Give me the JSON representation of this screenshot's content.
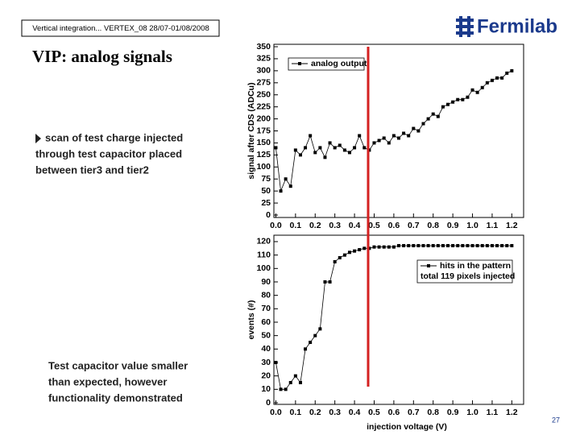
{
  "header": {
    "conference": "Vertical integration... VERTEX_08 28/07-01/08/2008",
    "logo": "Fermilab"
  },
  "slide": {
    "title": "VIP: analog signals",
    "bullet": [
      "scan of test charge injected",
      "through test capacitor placed",
      "between tier3 and tier2"
    ],
    "note": [
      "Test capacitor value smaller",
      "than expected, however",
      "functionality demonstrated"
    ],
    "page": "27"
  },
  "chart_data": [
    {
      "type": "line",
      "ylabel": "signal after CDS (ADCu)",
      "x": [
        0.0,
        0.025,
        0.05,
        0.075,
        0.1,
        0.125,
        0.15,
        0.175,
        0.2,
        0.225,
        0.25,
        0.275,
        0.3,
        0.325,
        0.35,
        0.375,
        0.4,
        0.425,
        0.45,
        0.475,
        0.5,
        0.525,
        0.55,
        0.575,
        0.6,
        0.625,
        0.65,
        0.675,
        0.7,
        0.725,
        0.75,
        0.775,
        0.8,
        0.825,
        0.85,
        0.875,
        0.9,
        0.925,
        0.95,
        0.975,
        1.0,
        1.025,
        1.05,
        1.075,
        1.1,
        1.125,
        1.15,
        1.175,
        1.2
      ],
      "series": [
        {
          "name": "analog output",
          "color": "#000000",
          "values": [
            140,
            50,
            75,
            60,
            135,
            125,
            140,
            165,
            130,
            140,
            120,
            150,
            140,
            145,
            135,
            130,
            140,
            165,
            140,
            135,
            150,
            155,
            160,
            150,
            165,
            160,
            170,
            165,
            180,
            175,
            190,
            200,
            210,
            205,
            225,
            230,
            235,
            240,
            240,
            245,
            260,
            255,
            265,
            275,
            280,
            285,
            285,
            295,
            300
          ]
        }
      ],
      "xlim": [
        -0.01,
        1.26
      ],
      "xticks": [
        {
          "value": 0,
          "label": "0.0"
        },
        0.1,
        0.2,
        0.3,
        0.4,
        0.5,
        0.6,
        0.7,
        0.8,
        0.9,
        {
          "value": 1,
          "label": "1.0"
        },
        1.1,
        1.2
      ],
      "ylim": [
        0,
        350
      ],
      "yticks": [
        0,
        25,
        50,
        75,
        100,
        125,
        150,
        175,
        200,
        225,
        250,
        275,
        300,
        325,
        350
      ],
      "legend": "upper left"
    },
    {
      "type": "line",
      "ylabel": "events (#)",
      "xlabel": "injection voltage (V)",
      "x": [
        0.0,
        0.025,
        0.05,
        0.075,
        0.1,
        0.125,
        0.15,
        0.175,
        0.2,
        0.225,
        0.25,
        0.275,
        0.3,
        0.325,
        0.35,
        0.375,
        0.4,
        0.425,
        0.45,
        0.475,
        0.5,
        0.525,
        0.55,
        0.575,
        0.6,
        0.625,
        0.65,
        0.675,
        0.7,
        0.725,
        0.75,
        0.775,
        0.8,
        0.825,
        0.85,
        0.875,
        0.9,
        0.925,
        0.95,
        0.975,
        1.0,
        1.025,
        1.05,
        1.075,
        1.1,
        1.125,
        1.15,
        1.175,
        1.2
      ],
      "series": [
        {
          "name": "hits in the pattern",
          "color": "#000000",
          "values": [
            30,
            10,
            10,
            15,
            20,
            15,
            40,
            45,
            50,
            55,
            90,
            90,
            105,
            108,
            110,
            112,
            113,
            114,
            115,
            115,
            116,
            116,
            116,
            116,
            116,
            117,
            117,
            117,
            117,
            117,
            117,
            117,
            117,
            117,
            117,
            117,
            117,
            117,
            117,
            117,
            117,
            117,
            117,
            117,
            117,
            117,
            117,
            117,
            117
          ]
        }
      ],
      "legend_note": "total 119 pixels injected",
      "xlim": [
        -0.01,
        1.26
      ],
      "xticks": [
        {
          "value": 0,
          "label": "0.0"
        },
        0.1,
        0.2,
        0.3,
        0.4,
        0.5,
        0.6,
        0.7,
        0.8,
        0.9,
        {
          "value": 1,
          "label": "1.0"
        },
        1.1,
        1.2
      ],
      "ylim": [
        0,
        124
      ],
      "yticks": [
        0,
        10,
        20,
        30,
        40,
        50,
        60,
        70,
        80,
        90,
        100,
        110,
        120
      ],
      "legend": "upper right"
    }
  ]
}
